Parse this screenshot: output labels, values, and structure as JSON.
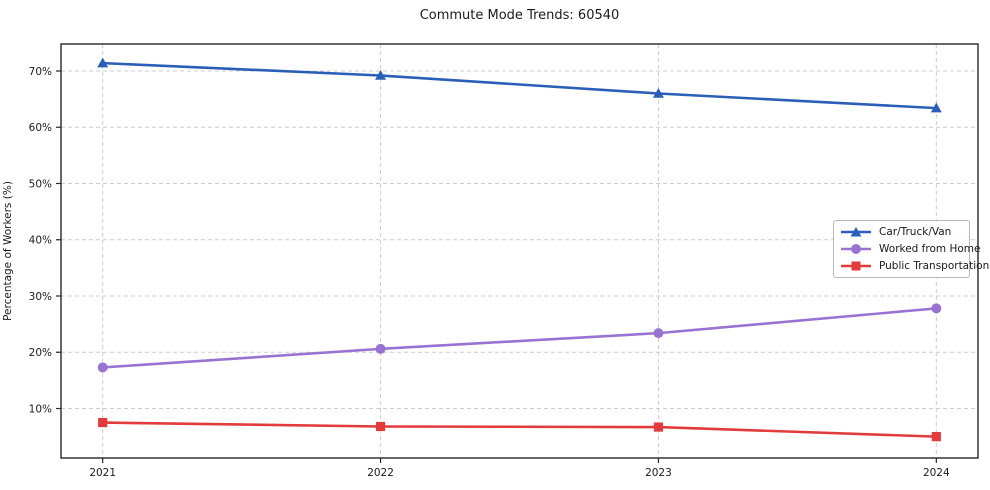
{
  "chart_data": {
    "type": "line",
    "title": "Commute Mode Trends: 60540",
    "xlabel": "",
    "ylabel": "Percentage of Workers (%)",
    "x": [
      2021,
      2022,
      2023,
      2024
    ],
    "xtick_labels": [
      "2021",
      "2022",
      "2023",
      "2024"
    ],
    "yticks": [
      10,
      20,
      30,
      40,
      50,
      60,
      70
    ],
    "ytick_labels": [
      "10%",
      "20%",
      "30%",
      "40%",
      "50%",
      "60%",
      "70%"
    ],
    "xlim": [
      2020.85,
      2024.15
    ],
    "ylim": [
      1.2,
      74.8
    ],
    "grid": true,
    "legend_position": "center right",
    "series": [
      {
        "name": "Car/Truck/Van",
        "marker": "triangle",
        "color": "#2b5fb7",
        "values": [
          71.4,
          69.2,
          66.0,
          63.4
        ]
      },
      {
        "name": "Worked from Home",
        "marker": "circle",
        "color": "#9873d1",
        "values": [
          17.3,
          20.6,
          23.4,
          27.8
        ]
      },
      {
        "name": "Public Transportation",
        "marker": "square",
        "color": "#e23b3c",
        "values": [
          7.5,
          6.8,
          6.7,
          5.0
        ]
      }
    ],
    "colors": {
      "grid": "#cccccc",
      "border": "#262626",
      "tick_text": "#1a1a1a",
      "background": "#ffffff"
    }
  }
}
